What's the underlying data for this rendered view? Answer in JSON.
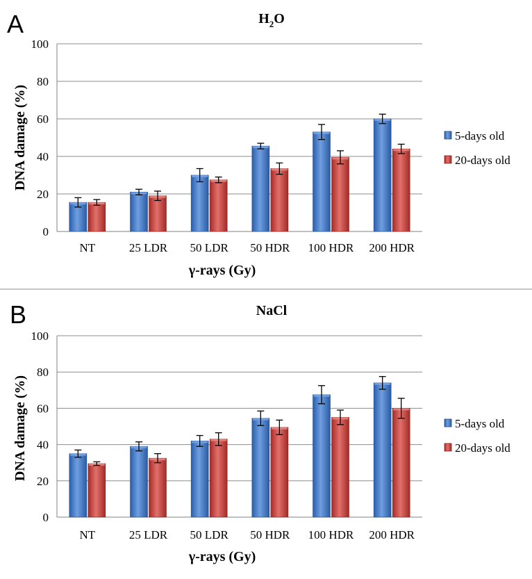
{
  "series_colors": {
    "blue_main": "#3a73c3",
    "blue_light": "#7aa8e6",
    "blue_dark": "#1f4f93",
    "red_main": "#c43c38",
    "red_light": "#ec8a85",
    "red_dark": "#8e1e1c"
  },
  "chart_data": [
    {
      "type": "bar",
      "panel": "A",
      "title_main": "H",
      "title_sub": "2",
      "title_tail": "O",
      "title": "H2O",
      "xlabel": "γ-rays (Gy)",
      "ylabel": "DNA damage (%)",
      "ylim": [
        0,
        100
      ],
      "yticks": [
        "0",
        "20",
        "40",
        "60",
        "80",
        "100"
      ],
      "grid": true,
      "legend_position": "right",
      "categories": [
        "NT",
        "25 LDR",
        "50 LDR",
        "50 HDR",
        "100 HDR",
        "200 HDR"
      ],
      "series": [
        {
          "name": "5-days old",
          "values": [
            15.5,
            21,
            30,
            45.5,
            53,
            60
          ],
          "errors": [
            2.5,
            1.5,
            3.5,
            1.5,
            4,
            2.5
          ]
        },
        {
          "name": "20-days old",
          "values": [
            15.5,
            19,
            27.5,
            33.5,
            39.5,
            44
          ],
          "errors": [
            1.5,
            2.5,
            1.5,
            3,
            3.5,
            2.5
          ]
        }
      ]
    },
    {
      "type": "bar",
      "panel": "B",
      "title_main": "NaCl",
      "title_sub": "",
      "title_tail": "",
      "title": "NaCl",
      "xlabel": "γ-rays (Gy)",
      "ylabel": "DNA damage (%)",
      "ylim": [
        0,
        100
      ],
      "yticks": [
        "0",
        "20",
        "40",
        "60",
        "80",
        "100"
      ],
      "grid": true,
      "legend_position": "right",
      "categories": [
        "NT",
        "25 LDR",
        "50 LDR",
        "50 HDR",
        "100 HDR",
        "200 HDR"
      ],
      "series": [
        {
          "name": "5-days old",
          "values": [
            35,
            39,
            42,
            54.5,
            67.5,
            74
          ],
          "errors": [
            2,
            2.5,
            3,
            4,
            5,
            3.5
          ]
        },
        {
          "name": "20-days old",
          "values": [
            29.5,
            32.5,
            43,
            49.5,
            55,
            60
          ],
          "errors": [
            1,
            2.5,
            3.5,
            4,
            4,
            5.5
          ]
        }
      ]
    }
  ]
}
